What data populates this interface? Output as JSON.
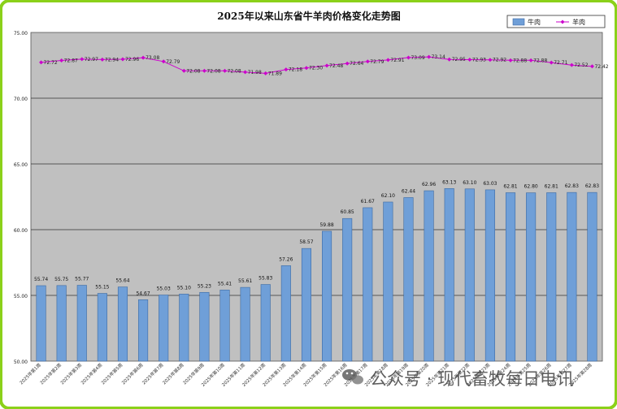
{
  "chart_data": {
    "type": "bar",
    "title": "2025年以来山东省牛羊肉价格变化走势图",
    "xlabel": "",
    "ylabel": "",
    "ylim": [
      50,
      75
    ],
    "y_ticks": [
      "50.00",
      "55.00",
      "60.00",
      "65.00",
      "70.00",
      "75.00"
    ],
    "grid": true,
    "legend_position": "top-right",
    "categories": [
      "2025年第1周",
      "2025年第2周",
      "2025年第3周",
      "2025年第4周",
      "2025年第5周",
      "2025年第6周",
      "2025年第7周",
      "2025年第8周",
      "2025年第9周",
      "2025年第10周",
      "2025年第11周",
      "2025年第12周",
      "2025年第13周",
      "2025年第14周",
      "2025年第15周",
      "2025年第16周",
      "2025年第17周",
      "2025年第18周",
      "2025年第19周",
      "2025年第20周",
      "2025年第21周",
      "2025年第22周",
      "2025年第23周",
      "2025年第24周",
      "2025年第25周",
      "2025年第26周",
      "2025年第27周",
      "2025年第28周"
    ],
    "series": [
      {
        "name": "牛肉",
        "type": "bar",
        "color": "#6f9fd8",
        "values": [
          55.74,
          55.75,
          55.77,
          55.15,
          55.64,
          54.67,
          55.03,
          55.1,
          55.23,
          55.41,
          55.61,
          55.83,
          57.26,
          58.57,
          59.88,
          60.85,
          61.67,
          62.1,
          62.44,
          62.96,
          63.13,
          63.1,
          63.03,
          62.81,
          62.8,
          62.81,
          62.83,
          62.83
        ]
      },
      {
        "name": "羊肉",
        "type": "line",
        "color": "#cc00cc",
        "values": [
          72.72,
          72.87,
          72.97,
          72.94,
          72.96,
          73.08,
          72.79,
          72.08,
          72.08,
          72.08,
          71.98,
          71.89,
          72.18,
          72.3,
          72.48,
          72.64,
          72.79,
          72.91,
          73.09,
          73.14,
          72.95,
          72.93,
          72.92,
          72.88,
          72.88,
          72.71,
          72.52,
          72.42
        ]
      }
    ]
  },
  "watermark": {
    "text": "公众号 · 现代畜牧每日电讯",
    "icon": "wechat-icon"
  },
  "colors": {
    "frame_border": "#8bd11a",
    "plot_background": "#c0c0c0"
  }
}
